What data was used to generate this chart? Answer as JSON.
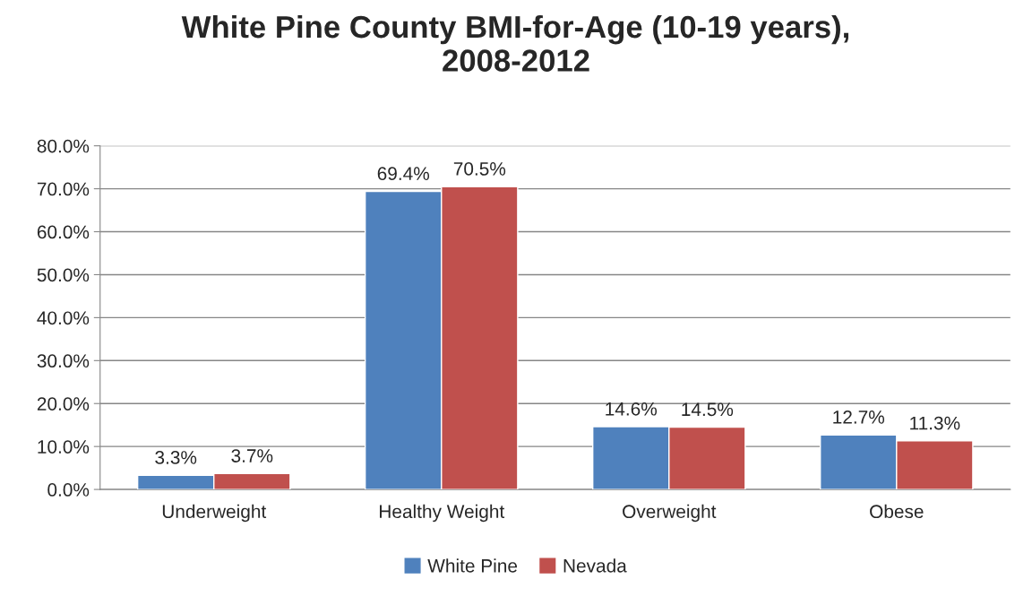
{
  "chart_data": {
    "type": "bar",
    "title": "White Pine County BMI-for-Age (10-19 years),\n2008-2012",
    "categories": [
      "Underweight",
      "Healthy Weight",
      "Overweight",
      "Obese"
    ],
    "series": [
      {
        "name": "White Pine",
        "color": "#4f81bd",
        "values": [
          3.3,
          69.4,
          14.6,
          12.7
        ],
        "value_labels": [
          "3.3%",
          "69.4%",
          "14.6%",
          "12.7%"
        ]
      },
      {
        "name": "Nevada",
        "color": "#c0504d",
        "values": [
          3.7,
          70.5,
          14.5,
          11.3
        ],
        "value_labels": [
          "3.7%",
          "70.5%",
          "14.5%",
          "11.3%"
        ]
      }
    ],
    "ylim": [
      0,
      80
    ],
    "yticks": [
      {
        "value": 0,
        "label": "0.0%"
      },
      {
        "value": 10,
        "label": "10.0%"
      },
      {
        "value": 20,
        "label": "20.0%"
      },
      {
        "value": 30,
        "label": "30.0%"
      },
      {
        "value": 40,
        "label": "40.0%"
      },
      {
        "value": 50,
        "label": "50.0%"
      },
      {
        "value": 60,
        "label": "60.0%"
      },
      {
        "value": 70,
        "label": "70.0%"
      },
      {
        "value": 80,
        "label": "80.0%"
      }
    ],
    "grid": "y",
    "legend": "bottom"
  }
}
